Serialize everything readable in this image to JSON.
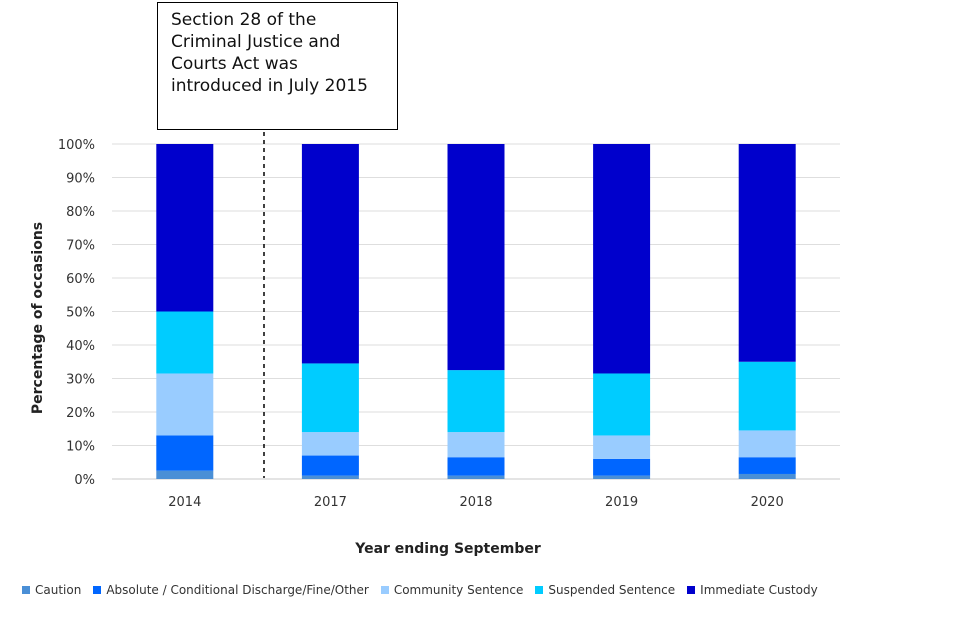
{
  "chart_data": {
    "type": "bar",
    "stacked": true,
    "normalized": true,
    "categories": [
      "2014",
      "2017",
      "2018",
      "2019",
      "2020"
    ],
    "xlabel": "Year ending September",
    "ylabel": "Percentage of occasions",
    "ylim": [
      0,
      100
    ],
    "yticks": [
      "0%",
      "10%",
      "20%",
      "30%",
      "40%",
      "50%",
      "60%",
      "70%",
      "80%",
      "90%",
      "100%"
    ],
    "grid": true,
    "legend_position": "bottom",
    "series": [
      {
        "name": "Caution",
        "color": "#4a8fd6",
        "values": [
          2.5,
          1,
          1,
          1,
          1.5
        ]
      },
      {
        "name": "Absolute / Conditional Discharge/Fine/Other",
        "color": "#0066ff",
        "values": [
          10.5,
          6,
          5.5,
          5,
          5
        ]
      },
      {
        "name": "Community Sentence",
        "color": "#99ccff",
        "values": [
          18.5,
          7,
          7.5,
          7,
          8
        ]
      },
      {
        "name": "Suspended Sentence",
        "color": "#00ccff",
        "values": [
          18.5,
          20.5,
          18.5,
          18.5,
          20.5
        ]
      },
      {
        "name": "Immediate Custody",
        "color": "#0000cc",
        "values": [
          50,
          65.5,
          67.5,
          68.5,
          65
        ]
      }
    ],
    "annotations": [
      {
        "text": "Section 28 of the\nCriminal Justice and\nCourts Act was\nintroduced in July 2015",
        "style": "dashed-divider-between-2014-and-2017"
      }
    ]
  }
}
